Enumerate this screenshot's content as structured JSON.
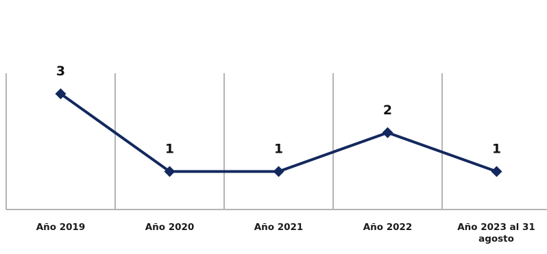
{
  "chart_data": {
    "type": "line",
    "categories": [
      [
        "Año 2019"
      ],
      [
        "Año 2020"
      ],
      [
        "Año 2021"
      ],
      [
        "Año 2022"
      ],
      [
        "Año 2023 al 31",
        "agosto"
      ]
    ],
    "series": [
      {
        "values": [
          3,
          1,
          1,
          2,
          1
        ]
      }
    ],
    "data_labels": [
      "3",
      "1",
      "1",
      "2",
      "1"
    ],
    "ylim": [
      -0.0,
      3.5
    ],
    "grid": "vertical",
    "legend": "none",
    "colors": {
      "line": "#13285e",
      "marker": "#13285e",
      "grid": "#b3b3b3",
      "axis": "#b3b3b3"
    }
  }
}
